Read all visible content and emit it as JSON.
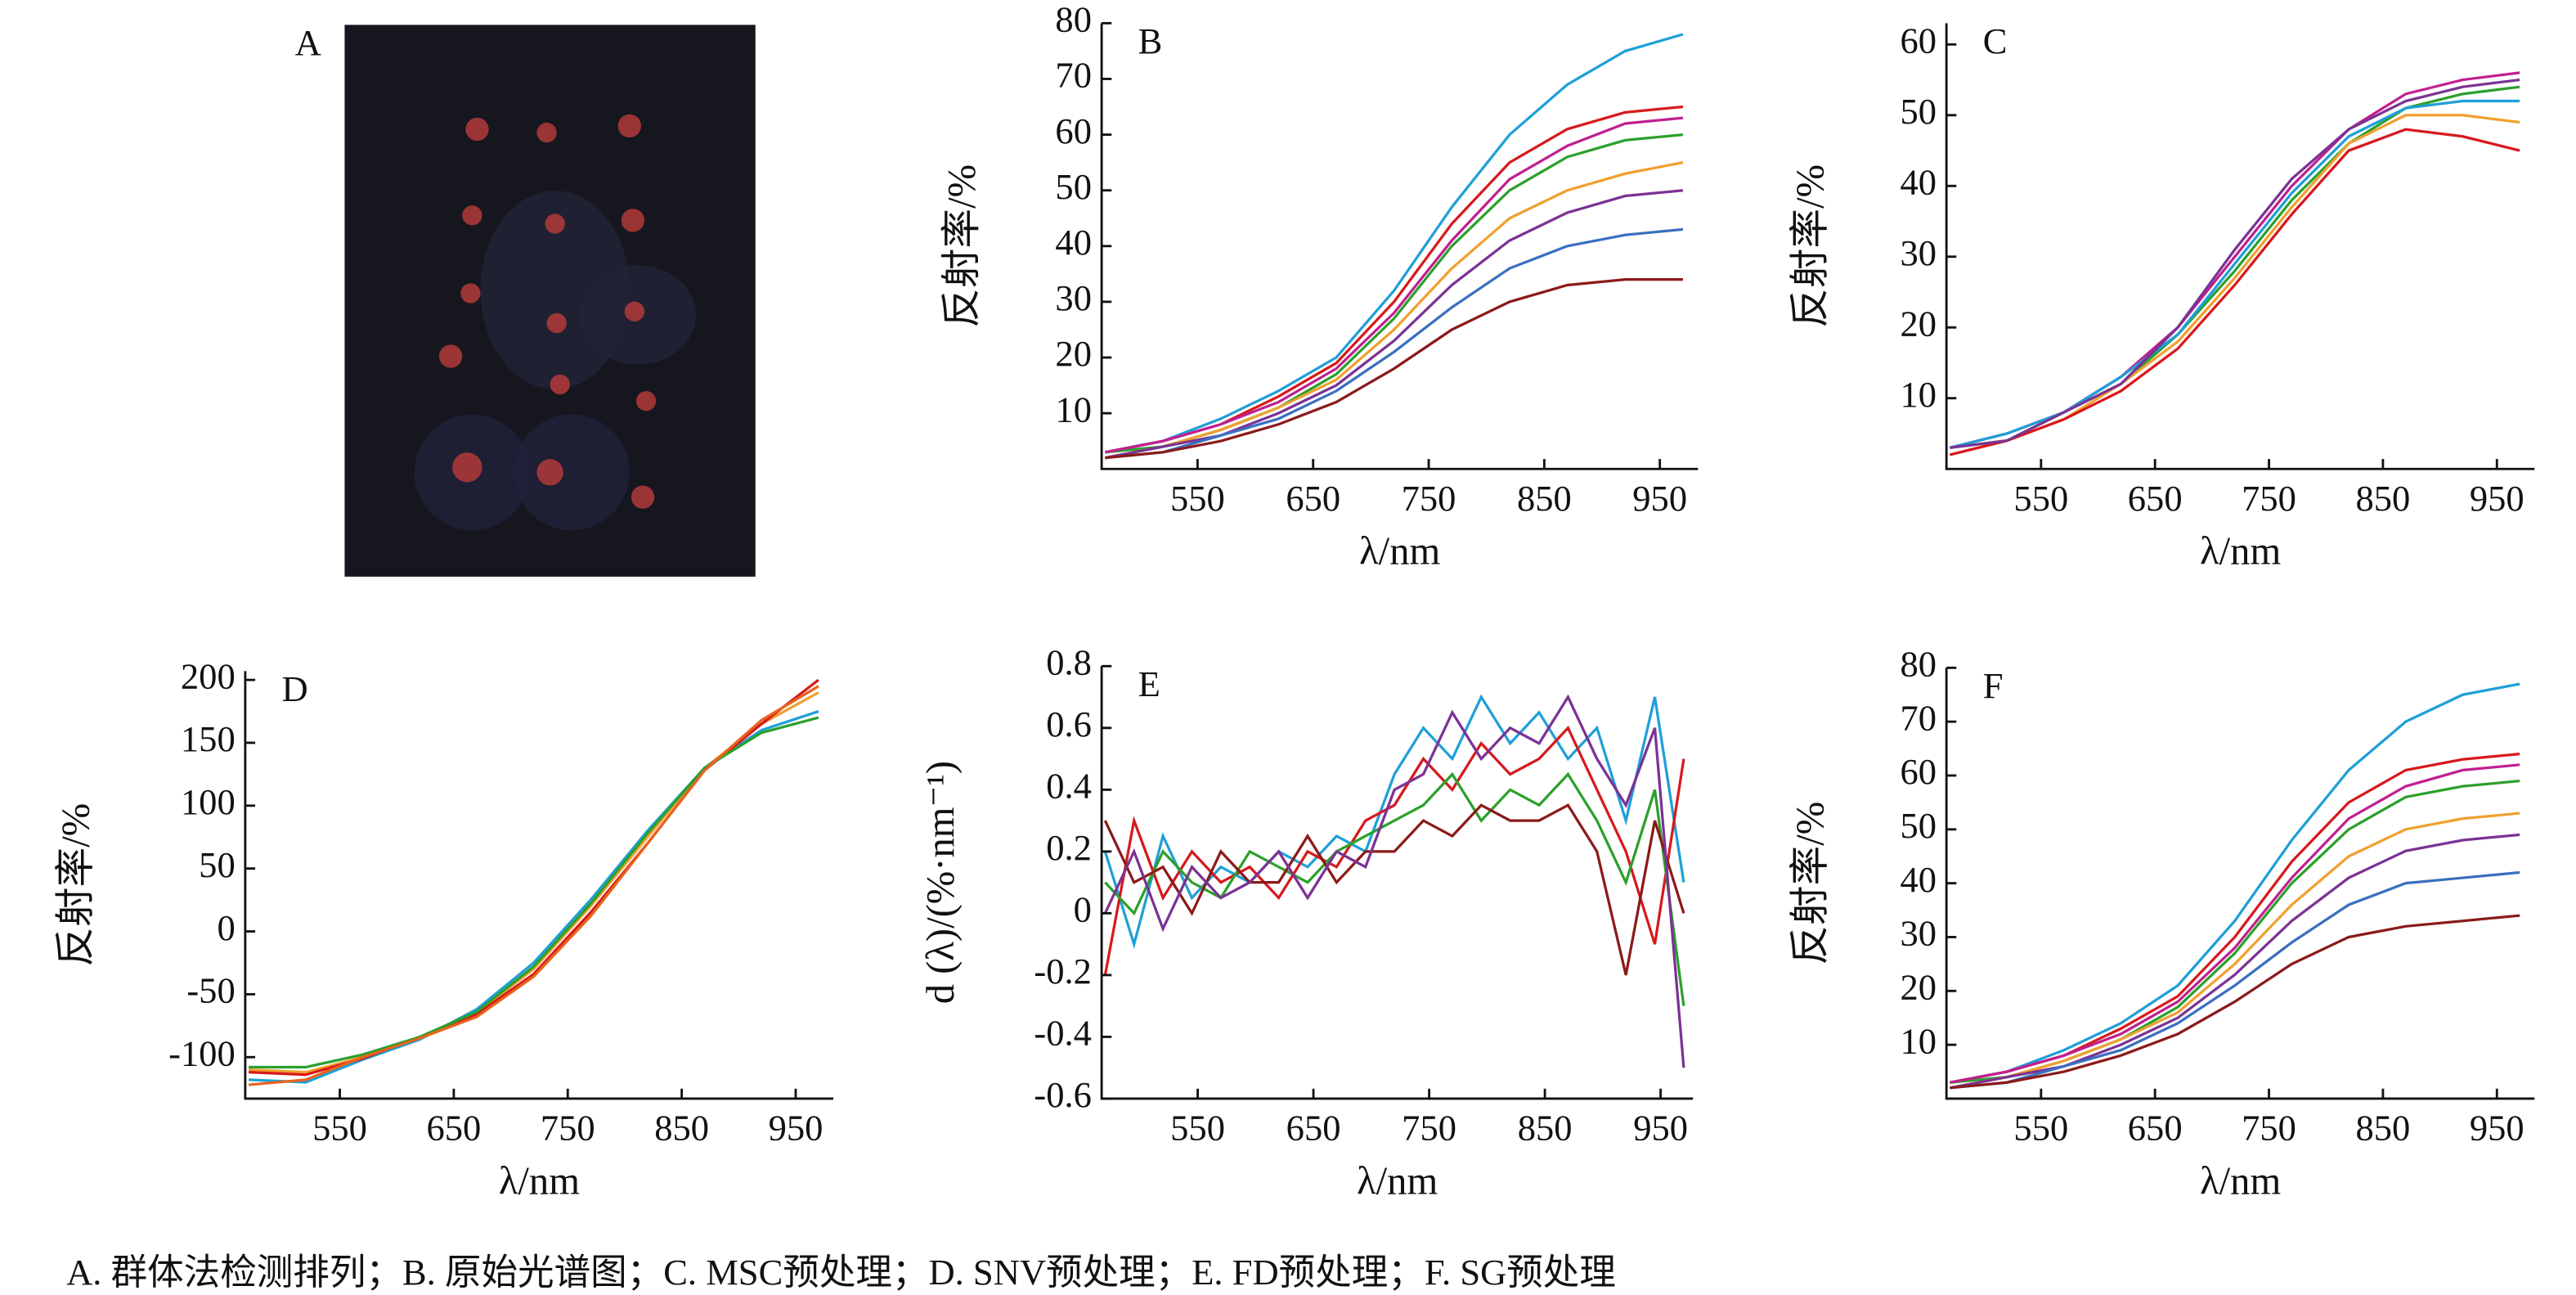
{
  "panel_a": {
    "label": "A"
  },
  "caption": "A. 群体法检测排列；B. 原始光谱图；C. MSC预处理；D. SNV预处理；E. FD预处理；F. SG预处理",
  "chart_data": [
    {
      "type": "line",
      "label": "B",
      "xlabel": "λ/nm",
      "ylabel": "反射率/%",
      "x": [
        470,
        520,
        570,
        620,
        670,
        720,
        770,
        820,
        870,
        920,
        970
      ],
      "xlim": [
        467,
        983
      ],
      "xticks": [
        550,
        650,
        750,
        850,
        950
      ],
      "ylim": [
        0,
        80
      ],
      "yticks": [
        10,
        20,
        30,
        40,
        50,
        60,
        70,
        80
      ],
      "series": [
        {
          "color": "#1f9fd8",
          "values": [
            3,
            5,
            9,
            14,
            20,
            32,
            47,
            60,
            69,
            75,
            78
          ]
        },
        {
          "color": "#d7191c",
          "values": [
            3,
            5,
            8,
            13,
            19,
            30,
            44,
            55,
            61,
            64,
            65
          ]
        },
        {
          "color": "#2ca02c",
          "values": [
            3,
            4,
            7,
            11,
            17,
            27,
            40,
            50,
            56,
            59,
            60
          ]
        },
        {
          "color": "#f0a030",
          "values": [
            2,
            4,
            7,
            11,
            16,
            25,
            36,
            45,
            50,
            53,
            55
          ]
        },
        {
          "color": "#7b3294",
          "values": [
            2,
            4,
            6,
            10,
            15,
            23,
            33,
            41,
            46,
            49,
            50
          ]
        },
        {
          "color": "#3a6fc0",
          "values": [
            2,
            3,
            6,
            9,
            14,
            21,
            29,
            36,
            40,
            42,
            43
          ]
        },
        {
          "color": "#8b1a1a",
          "values": [
            2,
            3,
            5,
            8,
            12,
            18,
            25,
            30,
            33,
            34,
            34
          ]
        },
        {
          "color": "#c02090",
          "values": [
            3,
            5,
            8,
            12,
            18,
            28,
            41,
            52,
            58,
            62,
            63
          ]
        }
      ]
    },
    {
      "type": "line",
      "label": "C",
      "xlabel": "λ/nm",
      "ylabel": "反射率/%",
      "x": [
        470,
        520,
        570,
        620,
        670,
        720,
        770,
        820,
        870,
        920,
        970
      ],
      "xlim": [
        467,
        983
      ],
      "xticks": [
        550,
        650,
        750,
        850,
        950
      ],
      "ylim": [
        0,
        63
      ],
      "yticks": [
        10,
        20,
        30,
        40,
        50,
        60
      ],
      "series": [
        {
          "color": "#c02090",
          "values": [
            3,
            5,
            8,
            13,
            20,
            30,
            40,
            48,
            53,
            55,
            56
          ]
        },
        {
          "color": "#2ca02c",
          "values": [
            3,
            4,
            8,
            12,
            19,
            28,
            38,
            46,
            51,
            53,
            54
          ]
        },
        {
          "color": "#f0a030",
          "values": [
            2,
            4,
            7,
            12,
            18,
            27,
            37,
            46,
            50,
            50,
            49
          ]
        },
        {
          "color": "#1f9fd8",
          "values": [
            3,
            5,
            8,
            13,
            19,
            29,
            39,
            47,
            51,
            52,
            52
          ]
        },
        {
          "color": "#d7191c",
          "values": [
            2,
            4,
            7,
            11,
            17,
            26,
            36,
            45,
            48,
            47,
            45
          ]
        },
        {
          "color": "#7b3294",
          "values": [
            3,
            4,
            8,
            12,
            20,
            31,
            41,
            48,
            52,
            54,
            55
          ]
        }
      ]
    },
    {
      "type": "line",
      "label": "D",
      "xlabel": "λ/nm",
      "ylabel": "反射率/%",
      "x": [
        470,
        520,
        570,
        620,
        670,
        720,
        770,
        820,
        870,
        920,
        970
      ],
      "xlim": [
        467,
        983
      ],
      "xticks": [
        550,
        650,
        750,
        850,
        950
      ],
      "ylim": [
        -133,
        207
      ],
      "yticks": [
        -100,
        -50,
        0,
        50,
        100,
        150,
        200
      ],
      "series": [
        {
          "color": "#f0a030",
          "values": [
            -110,
            -112,
            -100,
            -85,
            -65,
            -30,
            20,
            75,
            130,
            165,
            190
          ]
        },
        {
          "color": "#1f9fd8",
          "values": [
            -118,
            -120,
            -102,
            -86,
            -62,
            -25,
            25,
            80,
            130,
            160,
            175
          ]
        },
        {
          "color": "#d7191c",
          "values": [
            -112,
            -114,
            -101,
            -84,
            -66,
            -34,
            15,
            70,
            128,
            165,
            200
          ]
        },
        {
          "color": "#2ca02c",
          "values": [
            -108,
            -108,
            -98,
            -84,
            -64,
            -28,
            22,
            78,
            130,
            158,
            170
          ]
        },
        {
          "color": "#e8641e",
          "values": [
            -122,
            -118,
            -100,
            -85,
            -68,
            -36,
            12,
            70,
            128,
            168,
            195
          ]
        }
      ]
    },
    {
      "type": "line",
      "label": "E",
      "xlabel": "λ/nm",
      "ylabel": "d (λ)/(%·nm⁻¹)",
      "x": [
        470,
        495,
        520,
        545,
        570,
        595,
        620,
        645,
        670,
        695,
        720,
        745,
        770,
        795,
        820,
        845,
        870,
        895,
        920,
        945,
        970
      ],
      "xlim": [
        467,
        978
      ],
      "xticks": [
        550,
        650,
        750,
        850,
        950
      ],
      "ylim": [
        -0.6,
        0.8
      ],
      "yticks": [
        -0.6,
        -0.4,
        -0.2,
        0,
        0.2,
        0.4,
        0.6,
        0.8
      ],
      "series": [
        {
          "color": "#1f9fd8",
          "values": [
            0.2,
            -0.1,
            0.25,
            0.05,
            0.15,
            0.1,
            0.2,
            0.15,
            0.25,
            0.2,
            0.45,
            0.6,
            0.5,
            0.7,
            0.55,
            0.65,
            0.5,
            0.6,
            0.3,
            0.7,
            0.1
          ]
        },
        {
          "color": "#d7191c",
          "values": [
            -0.2,
            0.3,
            0.05,
            0.2,
            0.1,
            0.15,
            0.05,
            0.2,
            0.15,
            0.3,
            0.35,
            0.5,
            0.4,
            0.55,
            0.45,
            0.5,
            0.6,
            0.4,
            0.2,
            -0.1,
            0.5
          ]
        },
        {
          "color": "#2ca02c",
          "values": [
            0.1,
            0.0,
            0.2,
            0.1,
            0.05,
            0.2,
            0.15,
            0.1,
            0.2,
            0.25,
            0.3,
            0.35,
            0.45,
            0.3,
            0.4,
            0.35,
            0.45,
            0.3,
            0.1,
            0.4,
            -0.3
          ]
        },
        {
          "color": "#8b1a1a",
          "values": [
            0.3,
            0.1,
            0.15,
            0.0,
            0.2,
            0.1,
            0.1,
            0.25,
            0.1,
            0.2,
            0.2,
            0.3,
            0.25,
            0.35,
            0.3,
            0.3,
            0.35,
            0.2,
            -0.2,
            0.3,
            0.0
          ]
        },
        {
          "color": "#7b3294",
          "values": [
            0.0,
            0.2,
            -0.05,
            0.15,
            0.05,
            0.1,
            0.2,
            0.05,
            0.2,
            0.15,
            0.4,
            0.45,
            0.65,
            0.5,
            0.6,
            0.55,
            0.7,
            0.5,
            0.35,
            0.6,
            -0.5
          ]
        }
      ]
    },
    {
      "type": "line",
      "label": "F",
      "xlabel": "λ/nm",
      "ylabel": "反射率/%",
      "x": [
        470,
        520,
        570,
        620,
        670,
        720,
        770,
        820,
        870,
        920,
        970
      ],
      "xlim": [
        467,
        983
      ],
      "xticks": [
        550,
        650,
        750,
        850,
        950
      ],
      "ylim": [
        0,
        80
      ],
      "yticks": [
        10,
        20,
        30,
        40,
        50,
        60,
        70,
        80
      ],
      "series": [
        {
          "color": "#1f9fd8",
          "values": [
            3,
            5,
            9,
            14,
            21,
            33,
            48,
            61,
            70,
            75,
            77
          ]
        },
        {
          "color": "#d7191c",
          "values": [
            3,
            5,
            8,
            13,
            19,
            30,
            44,
            55,
            61,
            63,
            64
          ]
        },
        {
          "color": "#2ca02c",
          "values": [
            3,
            4,
            7,
            11,
            17,
            27,
            40,
            50,
            56,
            58,
            59
          ]
        },
        {
          "color": "#f0a030",
          "values": [
            2,
            4,
            7,
            11,
            16,
            25,
            36,
            45,
            50,
            52,
            53
          ]
        },
        {
          "color": "#7b3294",
          "values": [
            2,
            4,
            6,
            10,
            15,
            23,
            33,
            41,
            46,
            48,
            49
          ]
        },
        {
          "color": "#3a6fc0",
          "values": [
            2,
            3,
            6,
            9,
            14,
            21,
            29,
            36,
            40,
            41,
            42
          ]
        },
        {
          "color": "#8b1a1a",
          "values": [
            2,
            3,
            5,
            8,
            12,
            18,
            25,
            30,
            32,
            33,
            34
          ]
        },
        {
          "color": "#c02090",
          "values": [
            3,
            5,
            8,
            12,
            18,
            28,
            41,
            52,
            58,
            61,
            62
          ]
        }
      ]
    }
  ]
}
